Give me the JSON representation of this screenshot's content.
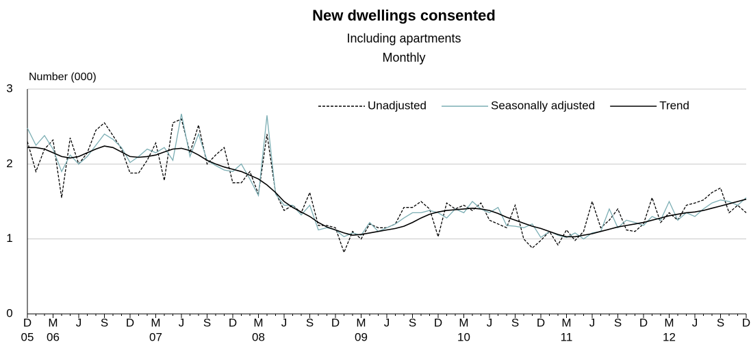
{
  "chart_data": {
    "type": "line",
    "title": "New dwellings consented",
    "subtitle": [
      "Including  apartments",
      "Monthly"
    ],
    "y_label": "Number  (000)",
    "categories": [
      "D",
      null,
      null,
      "M",
      null,
      null,
      "J",
      null,
      null,
      "S",
      null,
      null,
      "D",
      null,
      null,
      "M",
      null,
      null,
      "J",
      null,
      null,
      "S",
      null,
      null,
      "D",
      null,
      null,
      "M",
      null,
      null,
      "J",
      null,
      null,
      "S",
      null,
      null,
      "D",
      null,
      null,
      "M",
      null,
      null,
      "J",
      null,
      null,
      "S",
      null,
      null,
      "D",
      null,
      null,
      "M",
      null,
      null,
      "J",
      null,
      null,
      "S",
      null,
      null,
      "D",
      null,
      null,
      "M",
      null,
      null,
      "J",
      null,
      null,
      "S",
      null,
      null,
      "D",
      null,
      null,
      "M",
      null,
      null,
      "J",
      null,
      null,
      "S",
      null,
      null,
      "D"
    ],
    "category_years": [
      "05",
      null,
      null,
      "06",
      null,
      null,
      null,
      null,
      null,
      null,
      null,
      null,
      null,
      null,
      null,
      "07",
      null,
      null,
      null,
      null,
      null,
      null,
      null,
      null,
      null,
      null,
      null,
      "08",
      null,
      null,
      null,
      null,
      null,
      null,
      null,
      null,
      null,
      null,
      null,
      "09",
      null,
      null,
      null,
      null,
      null,
      null,
      null,
      null,
      null,
      null,
      null,
      "10",
      null,
      null,
      null,
      null,
      null,
      null,
      null,
      null,
      null,
      null,
      null,
      "11",
      null,
      null,
      null,
      null,
      null,
      null,
      null,
      null,
      null,
      null,
      null,
      "12",
      null,
      null,
      null,
      null,
      null,
      null,
      null,
      null,
      null
    ],
    "ylim": [
      0,
      3
    ],
    "yticks": [
      0,
      1,
      2,
      3
    ],
    "grid": true,
    "legend": "top-right",
    "series": [
      {
        "name": "Unadjusted",
        "color": "#000000",
        "dashed": true,
        "values": [
          2.3,
          1.9,
          2.2,
          2.32,
          1.55,
          2.35,
          2.0,
          2.15,
          2.45,
          2.55,
          2.38,
          2.2,
          1.88,
          1.88,
          2.05,
          2.28,
          1.78,
          2.55,
          2.6,
          2.15,
          2.52,
          2.0,
          2.12,
          2.22,
          1.75,
          1.75,
          1.9,
          1.6,
          2.4,
          1.62,
          1.38,
          1.45,
          1.35,
          1.62,
          1.18,
          1.18,
          1.15,
          0.82,
          1.1,
          1.0,
          1.2,
          1.15,
          1.15,
          1.2,
          1.42,
          1.42,
          1.5,
          1.4,
          1.03,
          1.48,
          1.4,
          1.45,
          1.38,
          1.48,
          1.25,
          1.2,
          1.15,
          1.45,
          1.0,
          0.88,
          0.98,
          1.1,
          0.92,
          1.12,
          0.98,
          1.1,
          1.5,
          1.15,
          1.25,
          1.4,
          1.12,
          1.1,
          1.2,
          1.55,
          1.22,
          1.35,
          1.25,
          1.45,
          1.48,
          1.52,
          1.62,
          1.68,
          1.35,
          1.45,
          1.35
        ]
      },
      {
        "name": "Seasonally adjusted",
        "color": "#7aadb3",
        "dashed": false,
        "values": [
          2.48,
          2.25,
          2.38,
          2.2,
          1.9,
          2.12,
          2.0,
          2.1,
          2.25,
          2.4,
          2.33,
          2.22,
          2.02,
          2.1,
          2.2,
          2.15,
          2.22,
          2.05,
          2.67,
          2.1,
          2.4,
          2.05,
          1.98,
          1.92,
          1.9,
          2.0,
          1.8,
          1.58,
          2.65,
          1.6,
          1.45,
          1.45,
          1.32,
          1.45,
          1.12,
          1.15,
          1.12,
          1.03,
          1.08,
          1.05,
          1.22,
          1.1,
          1.15,
          1.2,
          1.28,
          1.35,
          1.35,
          1.38,
          1.35,
          1.28,
          1.4,
          1.35,
          1.5,
          1.4,
          1.35,
          1.42,
          1.18,
          1.17,
          1.15,
          1.2,
          1.02,
          1.1,
          1.05,
          1.02,
          1.08,
          1.0,
          1.08,
          1.1,
          1.4,
          1.15,
          1.25,
          1.22,
          1.18,
          1.3,
          1.25,
          1.5,
          1.25,
          1.35,
          1.3,
          1.4,
          1.48,
          1.52,
          1.5,
          1.45,
          1.55
        ]
      },
      {
        "name": "Trend",
        "color": "#000000",
        "dashed": false,
        "values": [
          2.22,
          2.22,
          2.2,
          2.15,
          2.1,
          2.08,
          2.1,
          2.15,
          2.2,
          2.24,
          2.22,
          2.16,
          2.1,
          2.09,
          2.1,
          2.12,
          2.16,
          2.2,
          2.21,
          2.18,
          2.12,
          2.05,
          2.0,
          1.96,
          1.93,
          1.9,
          1.85,
          1.8,
          1.72,
          1.62,
          1.5,
          1.42,
          1.36,
          1.3,
          1.22,
          1.16,
          1.12,
          1.08,
          1.05,
          1.06,
          1.08,
          1.1,
          1.12,
          1.14,
          1.17,
          1.22,
          1.28,
          1.33,
          1.36,
          1.38,
          1.39,
          1.4,
          1.41,
          1.4,
          1.38,
          1.34,
          1.29,
          1.25,
          1.21,
          1.17,
          1.14,
          1.1,
          1.06,
          1.03,
          1.03,
          1.05,
          1.07,
          1.1,
          1.13,
          1.16,
          1.18,
          1.2,
          1.22,
          1.25,
          1.28,
          1.31,
          1.33,
          1.35,
          1.36,
          1.38,
          1.41,
          1.44,
          1.47,
          1.5,
          1.53
        ]
      }
    ]
  }
}
